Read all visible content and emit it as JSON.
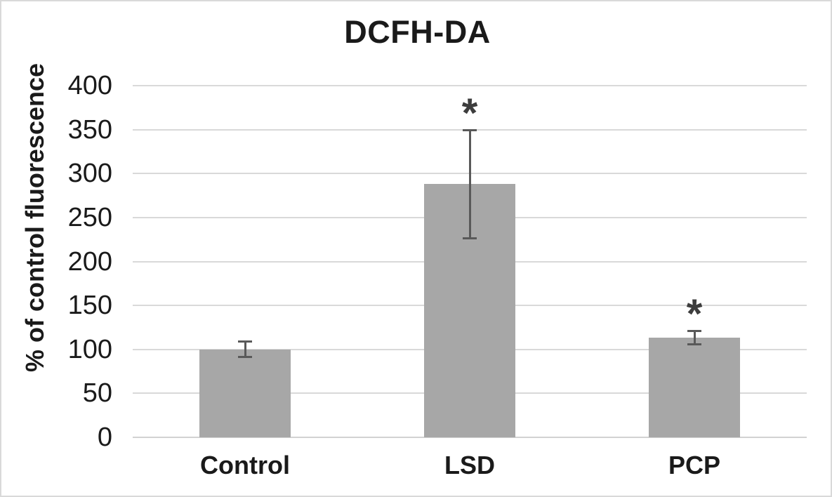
{
  "chart_data": {
    "type": "bar",
    "title": "DCFH-DA",
    "ylabel": "% of control fluorescence",
    "xlabel": "",
    "categories": [
      "Control",
      "LSD",
      "PCP"
    ],
    "values": [
      100,
      288,
      113
    ],
    "error_bars": [
      9,
      62,
      8
    ],
    "significance_markers": [
      "",
      "*",
      "*"
    ],
    "ylim": [
      0,
      400
    ],
    "yticks": [
      0,
      50,
      100,
      150,
      200,
      250,
      300,
      350,
      400
    ],
    "grid": true,
    "legend": false,
    "colors": {
      "bar_fill": "#a7a7a7",
      "error_bar": "#595959",
      "gridline": "#d9d9d9",
      "axis_line": "#d2d2d2",
      "text": "#1a1a1a",
      "significance": "#3d3d3d",
      "frame_border": "#d9d9d9",
      "background": "#ffffff"
    }
  }
}
